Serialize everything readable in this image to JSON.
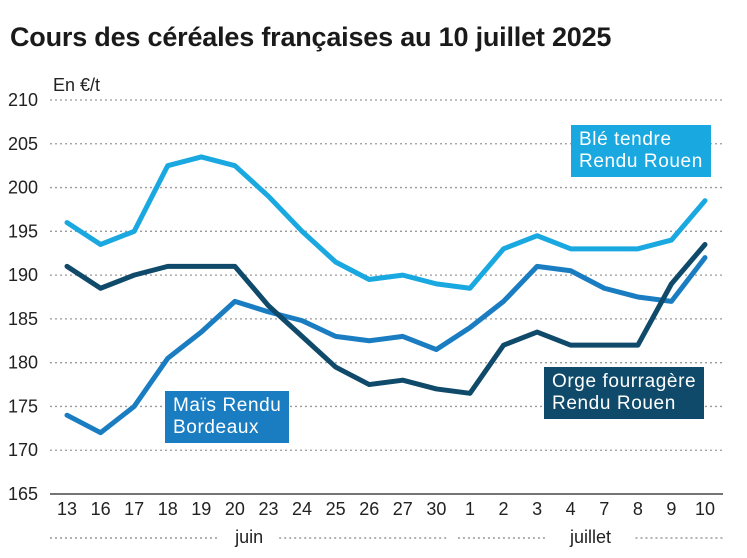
{
  "chart_data": {
    "type": "line",
    "title": "Cours des céréales françaises au 10 juillet 2025",
    "ylabel": "En €/t",
    "xlabel": "",
    "ylim": [
      165,
      210
    ],
    "yticks": [
      165,
      170,
      175,
      180,
      185,
      190,
      195,
      200,
      205,
      210
    ],
    "categories": [
      "13",
      "16",
      "17",
      "18",
      "19",
      "20",
      "23",
      "24",
      "25",
      "26",
      "27",
      "30",
      "1",
      "2",
      "3",
      "4",
      "7",
      "8",
      "9",
      "10"
    ],
    "months": [
      {
        "label": "juin",
        "start": 0,
        "end": 11
      },
      {
        "label": "juillet",
        "start": 12,
        "end": 19
      }
    ],
    "series": [
      {
        "name": "Blé tendre Rendu Rouen",
        "label_lines": [
          "Blé tendre",
          "Rendu Rouen"
        ],
        "color": "#19a8e0",
        "values": [
          196,
          193.5,
          195,
          202.5,
          203.5,
          202.5,
          199,
          195,
          191.5,
          189.5,
          190,
          189,
          188.5,
          193,
          194.5,
          193,
          193,
          193,
          194,
          198.5
        ]
      },
      {
        "name": "Maïs Rendu Bordeaux",
        "label_lines": [
          "Maïs Rendu",
          "Bordeaux"
        ],
        "color": "#1a7dc1",
        "values": [
          174,
          172,
          175,
          180.5,
          183.5,
          187,
          185.8,
          184.8,
          183,
          182.5,
          183,
          181.5,
          184,
          187,
          191,
          190.5,
          188.5,
          187.5,
          187,
          192
        ]
      },
      {
        "name": "Orge fourragère Rendu Rouen",
        "label_lines": [
          "Orge fourragère",
          "Rendu Rouen"
        ],
        "color": "#0f4a6a",
        "values": [
          191,
          188.5,
          190,
          191,
          191,
          191,
          186.5,
          183,
          179.5,
          177.5,
          178,
          177,
          176.5,
          182,
          183.5,
          182,
          182,
          182,
          189,
          193.5
        ]
      }
    ]
  }
}
